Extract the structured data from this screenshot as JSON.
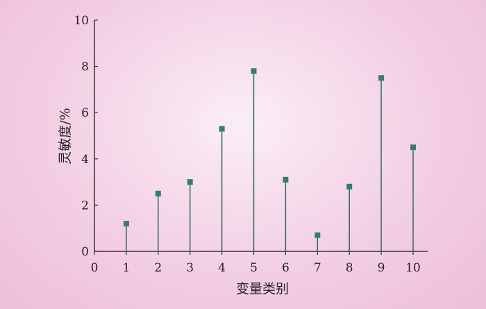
{
  "chart_data": {
    "type": "stem",
    "xlabel": "变量类别",
    "ylabel": "灵敏度/%",
    "x": [
      1,
      2,
      3,
      4,
      5,
      6,
      7,
      8,
      9,
      10
    ],
    "values": [
      1.2,
      2.5,
      3.0,
      5.3,
      7.8,
      3.1,
      0.7,
      2.8,
      7.5,
      4.5
    ],
    "xlim": [
      0,
      10.5
    ],
    "ylim": [
      0,
      10
    ],
    "xticks": [
      "0",
      "1",
      "2",
      "3",
      "4",
      "5",
      "6",
      "7",
      "8",
      "9",
      "10"
    ],
    "yticks": [
      "0",
      "2",
      "4",
      "6",
      "8",
      "10"
    ],
    "grid": false,
    "colors": {
      "stem": "#2f6b68",
      "marker": "#2e7f72",
      "axis": "#333333"
    }
  }
}
